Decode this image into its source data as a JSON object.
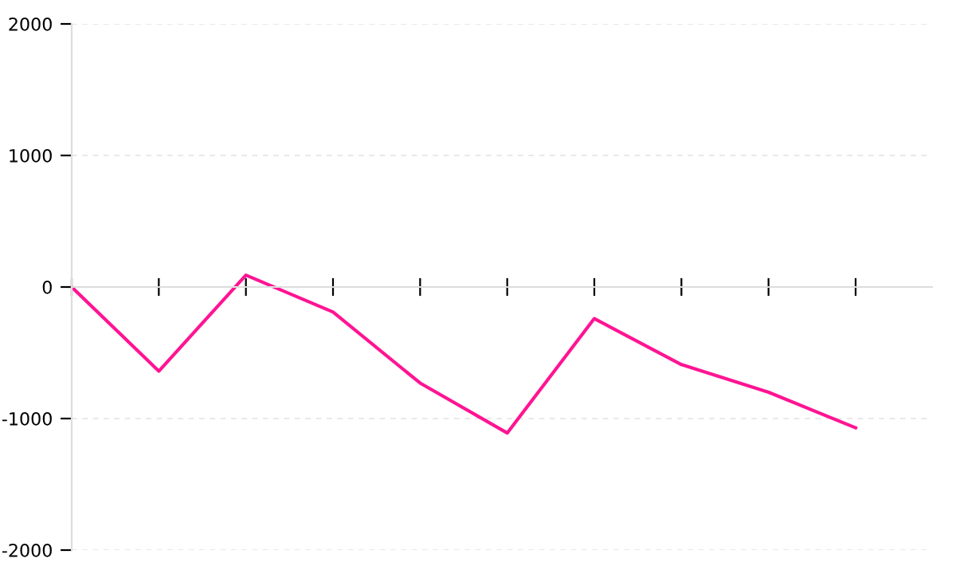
{
  "chart_data": {
    "type": "line",
    "categories": [
      null,
      null,
      null,
      null,
      null,
      null,
      null,
      null,
      null,
      null
    ],
    "series": [
      {
        "color": "#ff1493",
        "values": [
          0,
          -640,
          90,
          -190,
          -730,
          -1110,
          -240,
          -590,
          -800,
          -1070
        ]
      }
    ],
    "ylim": [
      -2000,
      2000
    ],
    "yticks": [
      -2000,
      -1000,
      0,
      1000,
      2000
    ],
    "grid": "y",
    "marker": "none",
    "line_style": "solid",
    "tick_labels": "y"
  }
}
